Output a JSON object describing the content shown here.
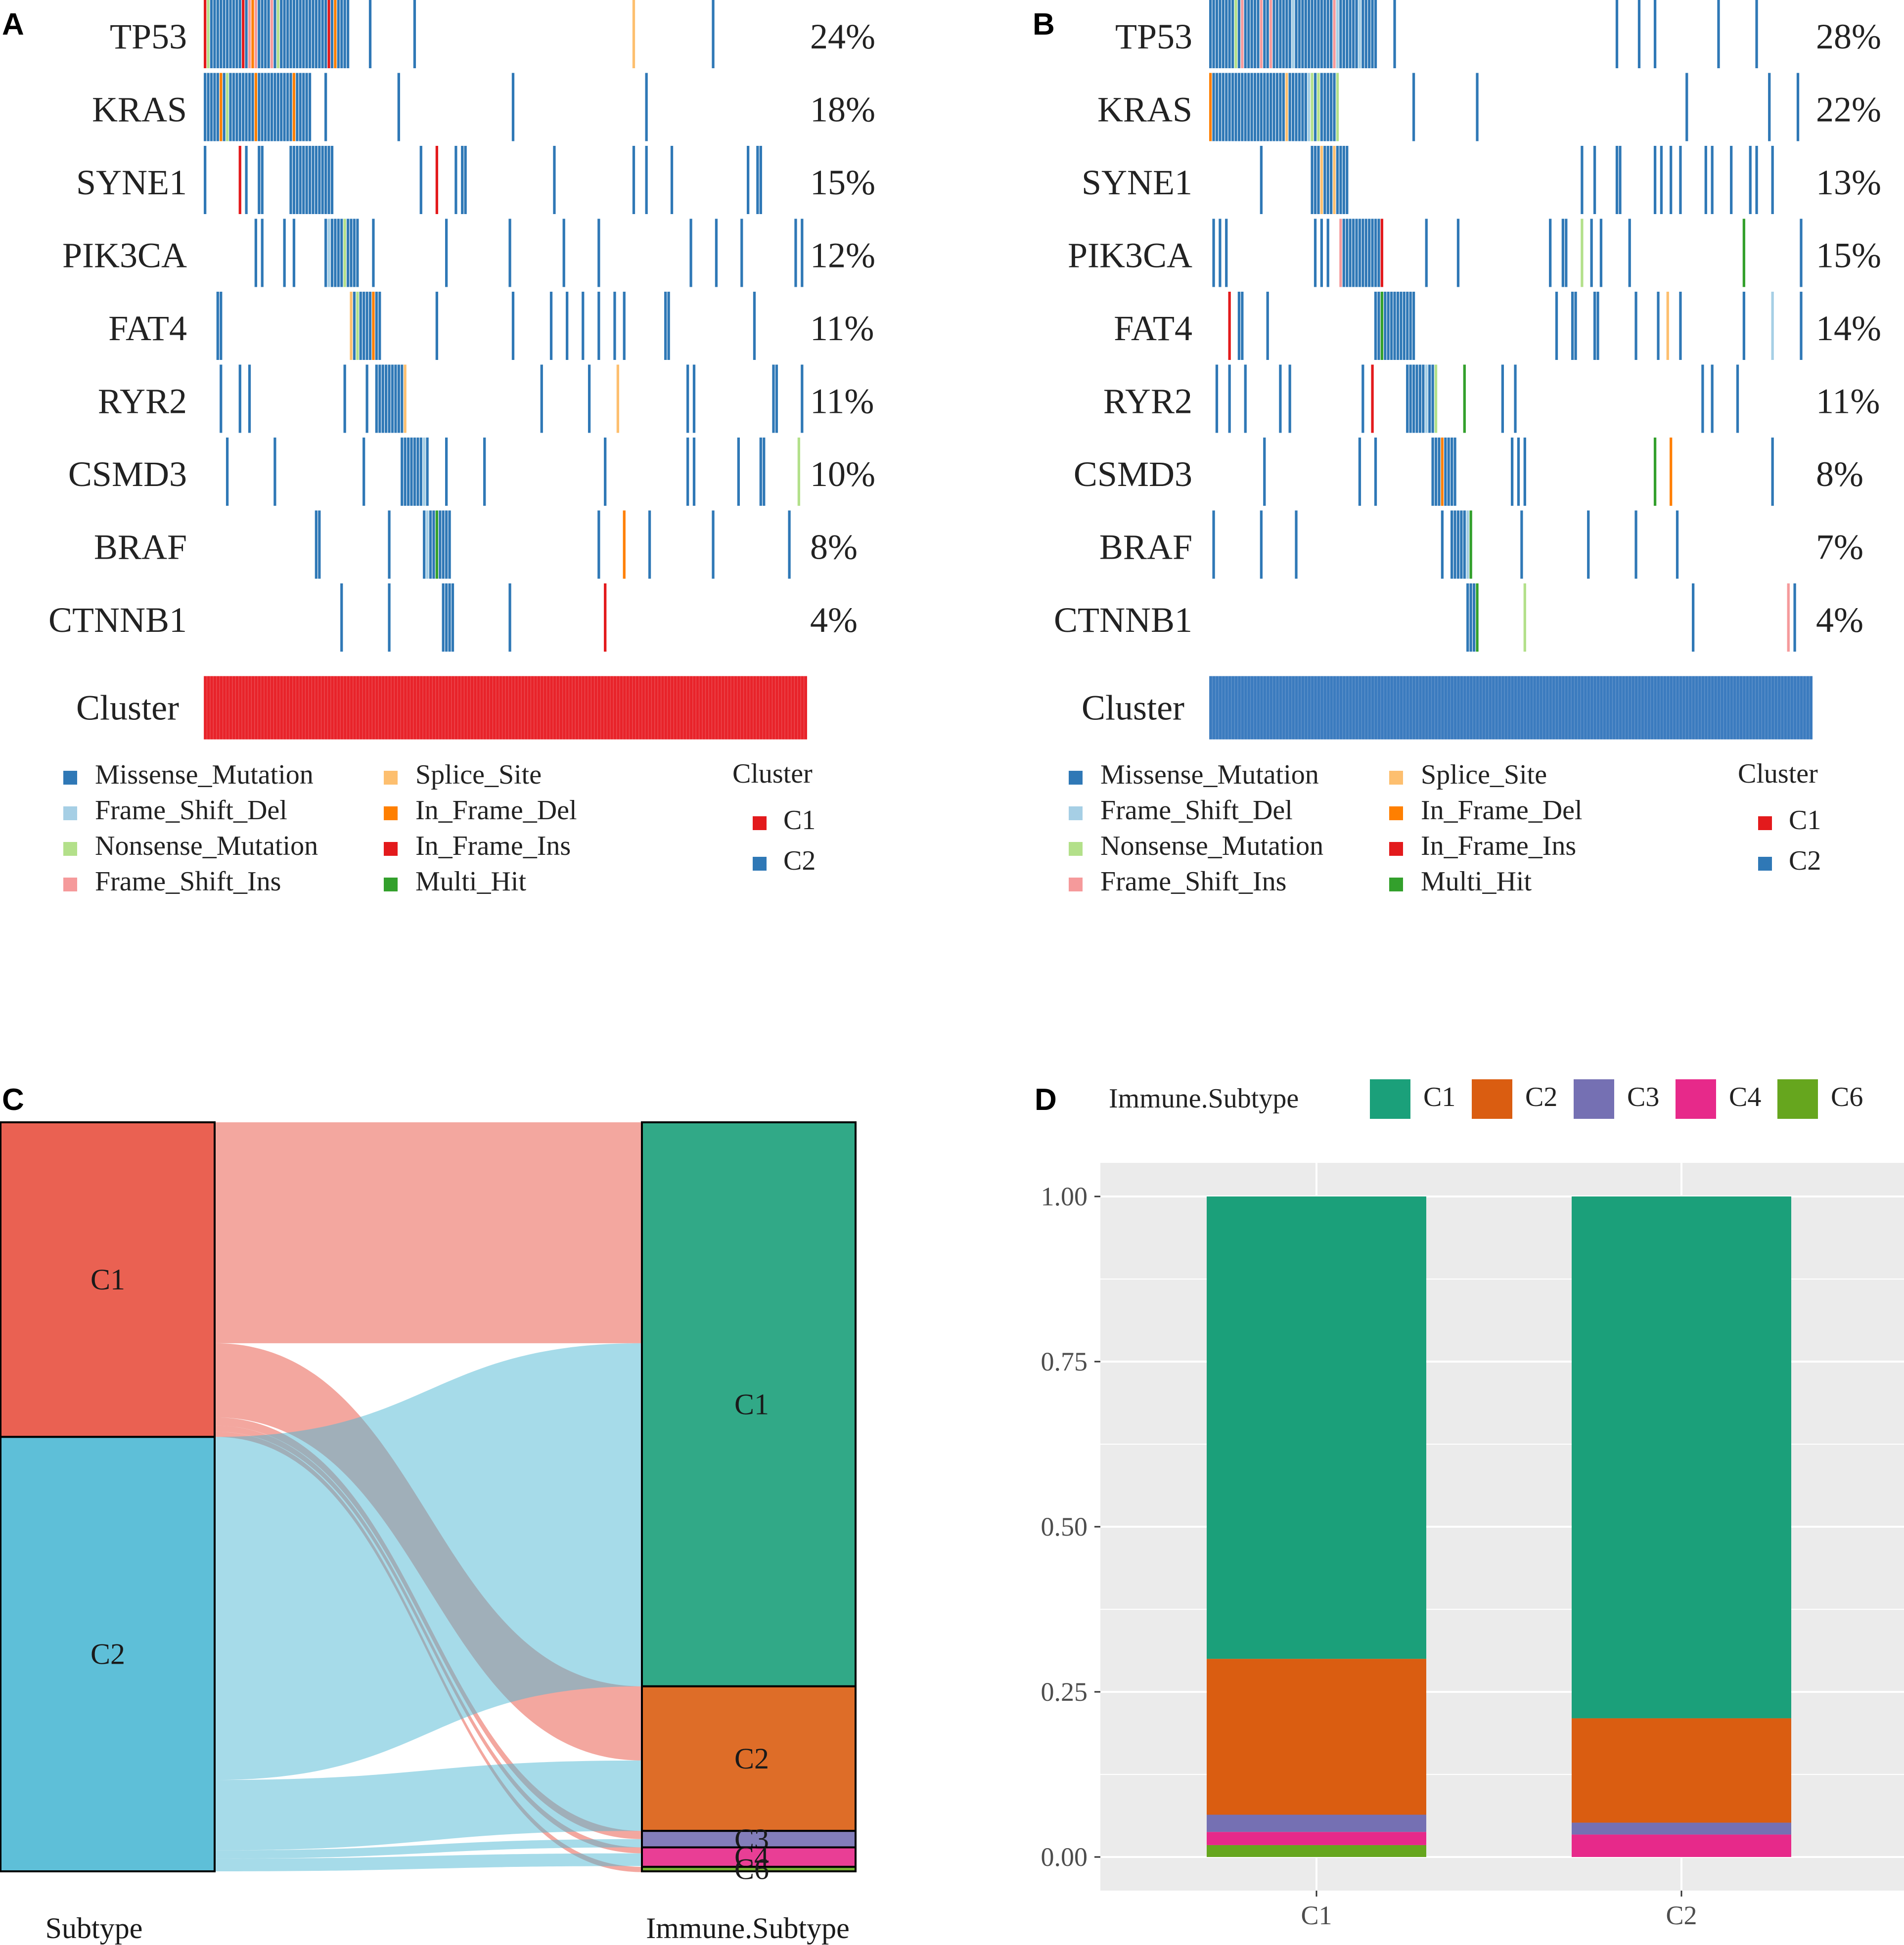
{
  "chart_data": [
    {
      "panel": "A",
      "type": "heatmap",
      "title": "",
      "genes": [
        "TP53",
        "KRAS",
        "SYNE1",
        "PIK3CA",
        "FAT4",
        "RYR2",
        "CSMD3",
        "BRAF",
        "CTNNB1"
      ],
      "percentages": [
        "24%",
        "18%",
        "15%",
        "12%",
        "11%",
        "11%",
        "10%",
        "8%",
        "4%"
      ],
      "cluster_label": "Cluster",
      "cluster": "C1",
      "cluster_color": "#e8232a"
    },
    {
      "panel": "B",
      "type": "heatmap",
      "title": "",
      "genes": [
        "TP53",
        "KRAS",
        "SYNE1",
        "PIK3CA",
        "FAT4",
        "RYR2",
        "CSMD3",
        "BRAF",
        "CTNNB1"
      ],
      "percentages": [
        "28%",
        "22%",
        "13%",
        "15%",
        "14%",
        "11%",
        "8%",
        "7%",
        "4%"
      ],
      "cluster_label": "Cluster",
      "cluster": "C2",
      "cluster_color": "#3b7bbf"
    },
    {
      "panel": "C",
      "type": "sankey",
      "xlabel_left": "Subtype",
      "xlabel_right": "Immune.Subtype",
      "left_nodes": [
        {
          "name": "C1",
          "value": 0.42,
          "color": "#e8503f"
        },
        {
          "name": "C2",
          "value": 0.58,
          "color": "#4db8d4"
        }
      ],
      "right_nodes": [
        {
          "name": "C1",
          "value": 0.753,
          "color": "#1ba07a"
        },
        {
          "name": "C2",
          "value": 0.193,
          "color": "#da5d11"
        },
        {
          "name": "C3",
          "value": 0.022,
          "color": "#7570b3"
        },
        {
          "name": "C4",
          "value": 0.026,
          "color": "#e7298a"
        },
        {
          "name": "C6",
          "value": 0.006,
          "color": "#66a61e"
        }
      ],
      "flows": [
        {
          "from": "C1",
          "to": "C1",
          "value": 0.295
        },
        {
          "from": "C1",
          "to": "C2",
          "value": 0.099
        },
        {
          "from": "C1",
          "to": "C3",
          "value": 0.011
        },
        {
          "from": "C1",
          "to": "C4",
          "value": 0.008
        },
        {
          "from": "C1",
          "to": "C6",
          "value": 0.007
        },
        {
          "from": "C2",
          "to": "C1",
          "value": 0.458
        },
        {
          "from": "C2",
          "to": "C2",
          "value": 0.094
        },
        {
          "from": "C2",
          "to": "C3",
          "value": 0.011
        },
        {
          "from": "C2",
          "to": "C4",
          "value": 0.017
        }
      ]
    },
    {
      "panel": "D",
      "type": "bar",
      "stacked": true,
      "categories": [
        "C1",
        "C2"
      ],
      "legend_title": "Immune.Subtype",
      "series": [
        {
          "name": "C1",
          "color": "#1ba07a",
          "values": [
            0.7,
            0.79
          ]
        },
        {
          "name": "C2",
          "color": "#da5d11",
          "values": [
            0.236,
            0.158
          ]
        },
        {
          "name": "C3",
          "color": "#7570b3",
          "values": [
            0.026,
            0.018
          ]
        },
        {
          "name": "C4",
          "color": "#e7298a",
          "values": [
            0.02,
            0.034
          ]
        },
        {
          "name": "C6",
          "color": "#66a61e",
          "values": [
            0.018,
            0.0
          ]
        }
      ],
      "yticks": [
        "0.00",
        "0.25",
        "0.50",
        "0.75",
        "1.00"
      ],
      "ylim": [
        0,
        1
      ],
      "xlabel": "",
      "ylabel": ""
    }
  ],
  "panels": {
    "a": "A",
    "b": "B",
    "c": "C",
    "d": "D"
  },
  "mutation_legend": {
    "items": [
      {
        "label": "Missense_Mutation",
        "color": "#2f78b6"
      },
      {
        "label": "Frame_Shift_Del",
        "color": "#a6cfe5"
      },
      {
        "label": "Nonsense_Mutation",
        "color": "#b3e08a"
      },
      {
        "label": "Frame_Shift_Ins",
        "color": "#f59a9b"
      },
      {
        "label": "Splice_Site",
        "color": "#fdbf6f"
      },
      {
        "label": "In_Frame_Del",
        "color": "#ff7f00"
      },
      {
        "label": "In_Frame_Ins",
        "color": "#e31a1c"
      },
      {
        "label": "Multi_Hit",
        "color": "#33a02c"
      }
    ],
    "cluster_title": "Cluster",
    "cluster_items": [
      {
        "label": "C1",
        "color": "#e31a1c"
      },
      {
        "label": "C2",
        "color": "#2f78b6"
      }
    ]
  }
}
